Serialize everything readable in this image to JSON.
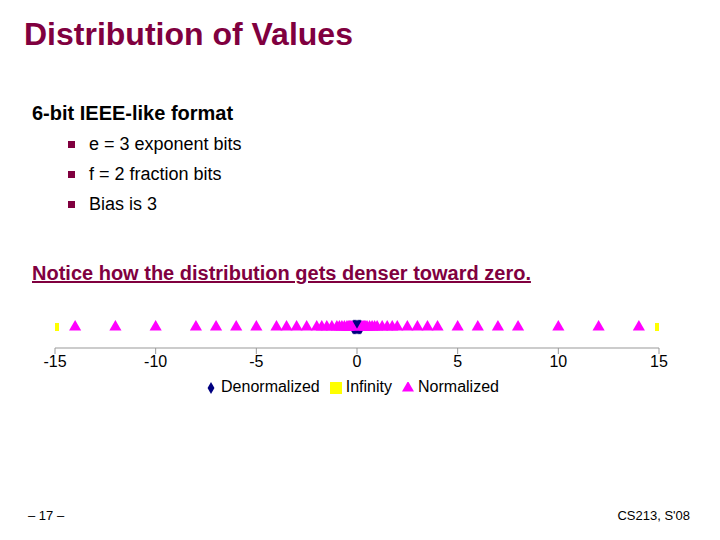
{
  "title": "Distribution of Values",
  "subtitle": "6-bit IEEE-like format",
  "bullets": [
    "e = 3 exponent bits",
    "f = 2 fraction bits",
    "Bias is 3"
  ],
  "note": "Notice how the distribution gets denser toward zero.",
  "page": "– 17 –",
  "footer": "CS213, S'08",
  "chart_data": {
    "type": "scatter",
    "xlim": [
      -15,
      15
    ],
    "xticks": [
      -15,
      -10,
      -5,
      0,
      5,
      10,
      15
    ],
    "tick_labels": "x",
    "legend": "bottom",
    "series": [
      {
        "name": "Denormalized",
        "color": "#000080",
        "marker": "diamond",
        "x": [
          -0.1875,
          -0.125,
          -0.0625,
          0,
          0.0625,
          0.125,
          0.1875
        ]
      },
      {
        "name": "Normalized",
        "color": "#ff00ff",
        "marker": "triangle",
        "x": [
          -14,
          -12,
          -10,
          -8,
          -7,
          -6,
          -5,
          -4,
          -3.5,
          -3,
          -2.5,
          -2,
          -1.75,
          -1.5,
          -1.25,
          -1,
          -0.875,
          -0.75,
          -0.625,
          -0.5,
          -0.4375,
          -0.375,
          -0.3125,
          -0.25,
          0.25,
          0.3125,
          0.375,
          0.4375,
          0.5,
          0.625,
          0.75,
          0.875,
          1,
          1.25,
          1.5,
          1.75,
          2,
          2.5,
          3,
          3.5,
          4,
          5,
          6,
          7,
          8,
          10,
          12,
          14
        ]
      },
      {
        "name": "Infinity",
        "color": "#ffff00",
        "marker": "square",
        "x": [
          -15,
          15
        ]
      }
    ]
  }
}
